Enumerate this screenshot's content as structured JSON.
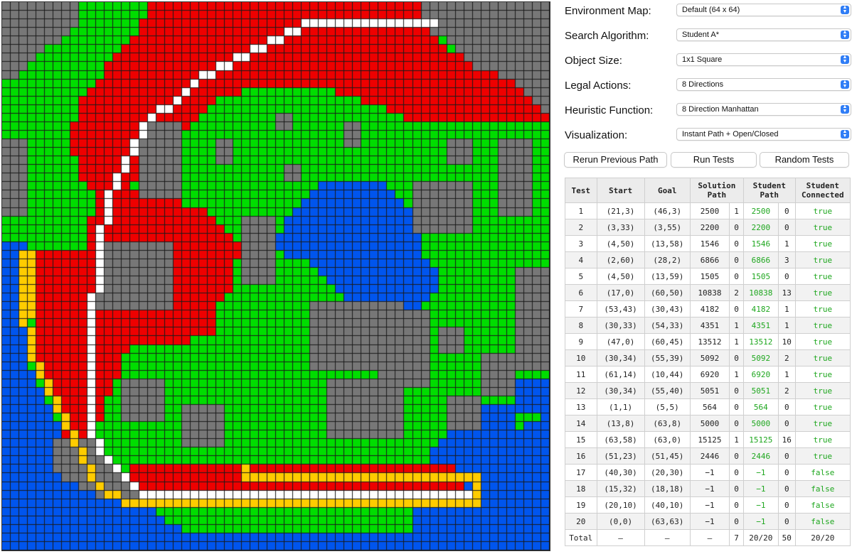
{
  "map": {
    "grid_size": 64,
    "colors": {
      "G": "#00dd00",
      "R": "#ee0000",
      "B": "#0055ee",
      "X": "#777777",
      "W": "#ffffff",
      "Y": "#ffcc00"
    }
  },
  "controls": [
    {
      "label": "Environment Map:",
      "value": "Default (64 x 64)"
    },
    {
      "label": "Search Algorithm:",
      "value": "Student A*"
    },
    {
      "label": "Object Size:",
      "value": "1x1 Square"
    },
    {
      "label": "Legal Actions:",
      "value": "8 Directions"
    },
    {
      "label": "Heuristic Function:",
      "value": "8 Direction Manhattan"
    },
    {
      "label": "Visualization:",
      "value": "Instant Path + Open/Closed"
    }
  ],
  "buttons": {
    "rerun": "Rerun Previous Path",
    "run": "Run Tests",
    "random": "Random Tests"
  },
  "table": {
    "headers": {
      "test": "Test",
      "start": "Start",
      "goal": "Goal",
      "solution_1": "Solution",
      "solution_2": "Path",
      "student_1": "Student",
      "student_2": "Path",
      "connected_1": "Student",
      "connected_2": "Connected"
    },
    "rows": [
      {
        "test": "1",
        "start": "(21,3)",
        "goal": "(46,3)",
        "solution": "2500",
        "sol_n": "1",
        "student": "2500",
        "stu_n": "0",
        "connected": "true"
      },
      {
        "test": "2",
        "start": "(3,33)",
        "goal": "(3,55)",
        "solution": "2200",
        "sol_n": "0",
        "student": "2200",
        "stu_n": "0",
        "connected": "true"
      },
      {
        "test": "3",
        "start": "(4,50)",
        "goal": "(13,58)",
        "solution": "1546",
        "sol_n": "0",
        "student": "1546",
        "stu_n": "1",
        "connected": "true"
      },
      {
        "test": "4",
        "start": "(2,60)",
        "goal": "(28,2)",
        "solution": "6866",
        "sol_n": "0",
        "student": "6866",
        "stu_n": "3",
        "connected": "true"
      },
      {
        "test": "5",
        "start": "(4,50)",
        "goal": "(13,59)",
        "solution": "1505",
        "sol_n": "0",
        "student": "1505",
        "stu_n": "0",
        "connected": "true"
      },
      {
        "test": "6",
        "start": "(17,0)",
        "goal": "(60,50)",
        "solution": "10838",
        "sol_n": "2",
        "student": "10838",
        "stu_n": "13",
        "connected": "true"
      },
      {
        "test": "7",
        "start": "(53,43)",
        "goal": "(30,43)",
        "solution": "4182",
        "sol_n": "0",
        "student": "4182",
        "stu_n": "1",
        "connected": "true"
      },
      {
        "test": "8",
        "start": "(30,33)",
        "goal": "(54,33)",
        "solution": "4351",
        "sol_n": "1",
        "student": "4351",
        "stu_n": "1",
        "connected": "true"
      },
      {
        "test": "9",
        "start": "(47,0)",
        "goal": "(60,45)",
        "solution": "13512",
        "sol_n": "1",
        "student": "13512",
        "stu_n": "10",
        "connected": "true"
      },
      {
        "test": "10",
        "start": "(30,34)",
        "goal": "(55,39)",
        "solution": "5092",
        "sol_n": "0",
        "student": "5092",
        "stu_n": "2",
        "connected": "true"
      },
      {
        "test": "11",
        "start": "(61,14)",
        "goal": "(10,44)",
        "solution": "6920",
        "sol_n": "1",
        "student": "6920",
        "stu_n": "1",
        "connected": "true"
      },
      {
        "test": "12",
        "start": "(30,34)",
        "goal": "(55,40)",
        "solution": "5051",
        "sol_n": "0",
        "student": "5051",
        "stu_n": "2",
        "connected": "true"
      },
      {
        "test": "13",
        "start": "(1,1)",
        "goal": "(5,5)",
        "solution": "564",
        "sol_n": "0",
        "student": "564",
        "stu_n": "0",
        "connected": "true"
      },
      {
        "test": "14",
        "start": "(13,8)",
        "goal": "(63,8)",
        "solution": "5000",
        "sol_n": "0",
        "student": "5000",
        "stu_n": "0",
        "connected": "true"
      },
      {
        "test": "15",
        "start": "(63,58)",
        "goal": "(63,0)",
        "solution": "15125",
        "sol_n": "1",
        "student": "15125",
        "stu_n": "16",
        "connected": "true"
      },
      {
        "test": "16",
        "start": "(51,23)",
        "goal": "(51,45)",
        "solution": "2446",
        "sol_n": "0",
        "student": "2446",
        "stu_n": "0",
        "connected": "true"
      },
      {
        "test": "17",
        "start": "(40,30)",
        "goal": "(20,30)",
        "solution": "−1",
        "sol_n": "0",
        "student": "−1",
        "stu_n": "0",
        "connected": "false"
      },
      {
        "test": "18",
        "start": "(15,32)",
        "goal": "(18,18)",
        "solution": "−1",
        "sol_n": "0",
        "student": "−1",
        "stu_n": "0",
        "connected": "false"
      },
      {
        "test": "19",
        "start": "(20,10)",
        "goal": "(40,10)",
        "solution": "−1",
        "sol_n": "0",
        "student": "−1",
        "stu_n": "0",
        "connected": "false"
      },
      {
        "test": "20",
        "start": "(0,0)",
        "goal": "(63,63)",
        "solution": "−1",
        "sol_n": "0",
        "student": "−1",
        "stu_n": "0",
        "connected": "false"
      }
    ],
    "total": {
      "label": "Total",
      "start": "–",
      "goal": "–",
      "solution": "–",
      "sol_n": "7",
      "student": "20/20",
      "stu_n": "50",
      "connected": "20/20"
    }
  }
}
